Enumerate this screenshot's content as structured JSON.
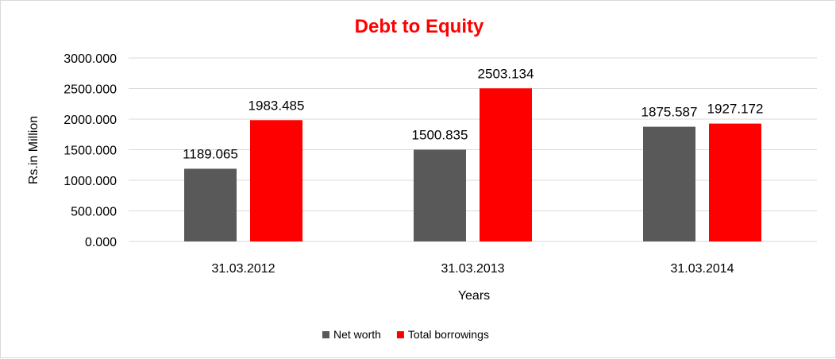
{
  "chart_data": {
    "type": "bar",
    "title": "Debt to Equity",
    "xlabel": "Years",
    "ylabel": "Rs.in Million",
    "categories": [
      "31.03.2012",
      "31.03.2013",
      "31.03.2014"
    ],
    "series": [
      {
        "name": "Net worth",
        "color": "#595959",
        "values": [
          1189.065,
          1500.835,
          1875.587
        ],
        "labels": [
          "1189.065",
          "1500.835",
          "1875.587"
        ]
      },
      {
        "name": "Total borrowings",
        "color": "#ff0000",
        "values": [
          1983.485,
          2503.134,
          1927.172
        ],
        "labels": [
          "1983.485",
          "2503.134",
          "1927.172"
        ]
      }
    ],
    "ylim": [
      0,
      3000
    ],
    "yticks": [
      "0.000",
      "500.000",
      "1000.000",
      "1500.000",
      "2000.000",
      "2500.000",
      "3000.000"
    ],
    "grid": true,
    "legend": "bottom",
    "title_color": "#ff0000",
    "grid_color": "#d9d9d9"
  }
}
